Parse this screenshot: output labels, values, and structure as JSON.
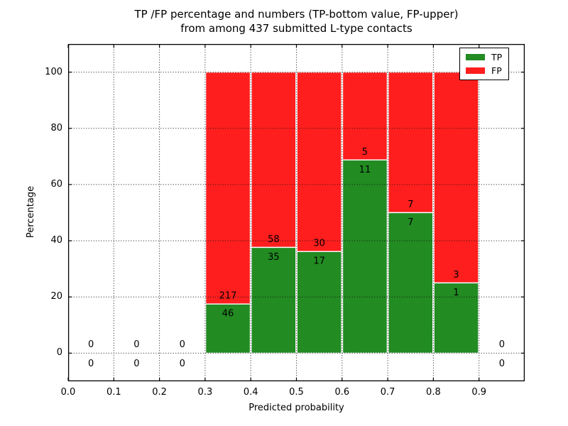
{
  "figure": {
    "title_line1": "TP /FP percentage and numbers (TP-bottom value, FP-upper)",
    "title_line2": "from among 437 submitted L-type contacts",
    "xlabel": "Predicted probability",
    "ylabel": "Percentage",
    "background": "#ffffff"
  },
  "legend": {
    "position": "upper right",
    "items": [
      {
        "label": "TP",
        "color": "#228B22"
      },
      {
        "label": "FP",
        "color": "#FF1E1E"
      }
    ]
  },
  "chart_data": {
    "type": "bar",
    "stacked": true,
    "normalized_to_percent": true,
    "title": "TP /FP percentage and numbers (TP-bottom value, FP-upper)\nfrom among 437 submitted L-type contacts",
    "xlabel": "Predicted probability",
    "ylabel": "Percentage",
    "xlim": [
      0.0,
      1.0
    ],
    "ylim": [
      -10,
      110
    ],
    "x_ticks": [
      0.0,
      0.1,
      0.2,
      0.3,
      0.4,
      0.5,
      0.6,
      0.7,
      0.8,
      0.9
    ],
    "x_tick_labels": [
      "0.0",
      "0.1",
      "0.2",
      "0.3",
      "0.4",
      "0.5",
      "0.6",
      "0.7",
      "0.8",
      "0.9"
    ],
    "y_ticks": [
      0,
      20,
      40,
      60,
      80,
      100
    ],
    "y_tick_labels": [
      "0",
      "20",
      "40",
      "60",
      "80",
      "100"
    ],
    "grid": "dotted",
    "grid_over_bars": true,
    "legend_position": "upper right",
    "bin_width": 0.1,
    "categories": [
      "0.0-0.1",
      "0.1-0.2",
      "0.2-0.3",
      "0.3-0.4",
      "0.4-0.5",
      "0.5-0.6",
      "0.6-0.7",
      "0.7-0.8",
      "0.8-0.9",
      "0.9-1.0"
    ],
    "bins": [
      {
        "x0": 0.0,
        "x1": 0.1,
        "tp": 0,
        "fp": 0
      },
      {
        "x0": 0.1,
        "x1": 0.2,
        "tp": 0,
        "fp": 0
      },
      {
        "x0": 0.2,
        "x1": 0.3,
        "tp": 0,
        "fp": 0
      },
      {
        "x0": 0.3,
        "x1": 0.4,
        "tp": 46,
        "fp": 217
      },
      {
        "x0": 0.4,
        "x1": 0.5,
        "tp": 35,
        "fp": 58
      },
      {
        "x0": 0.5,
        "x1": 0.6,
        "tp": 17,
        "fp": 30
      },
      {
        "x0": 0.6,
        "x1": 0.7,
        "tp": 11,
        "fp": 5
      },
      {
        "x0": 0.7,
        "x1": 0.8,
        "tp": 7,
        "fp": 7
      },
      {
        "x0": 0.8,
        "x1": 0.9,
        "tp": 1,
        "fp": 3
      },
      {
        "x0": 0.9,
        "x1": 1.0,
        "tp": 0,
        "fp": 0
      }
    ],
    "series": [
      {
        "name": "TP",
        "color": "#228B22",
        "counts": [
          0,
          0,
          0,
          46,
          35,
          17,
          11,
          7,
          1,
          0
        ]
      },
      {
        "name": "FP",
        "color": "#FF1E1E",
        "counts": [
          0,
          0,
          0,
          217,
          58,
          30,
          5,
          7,
          3,
          0
        ]
      }
    ],
    "bar_edge_color": "#ffffff",
    "total_contacts": 437
  }
}
